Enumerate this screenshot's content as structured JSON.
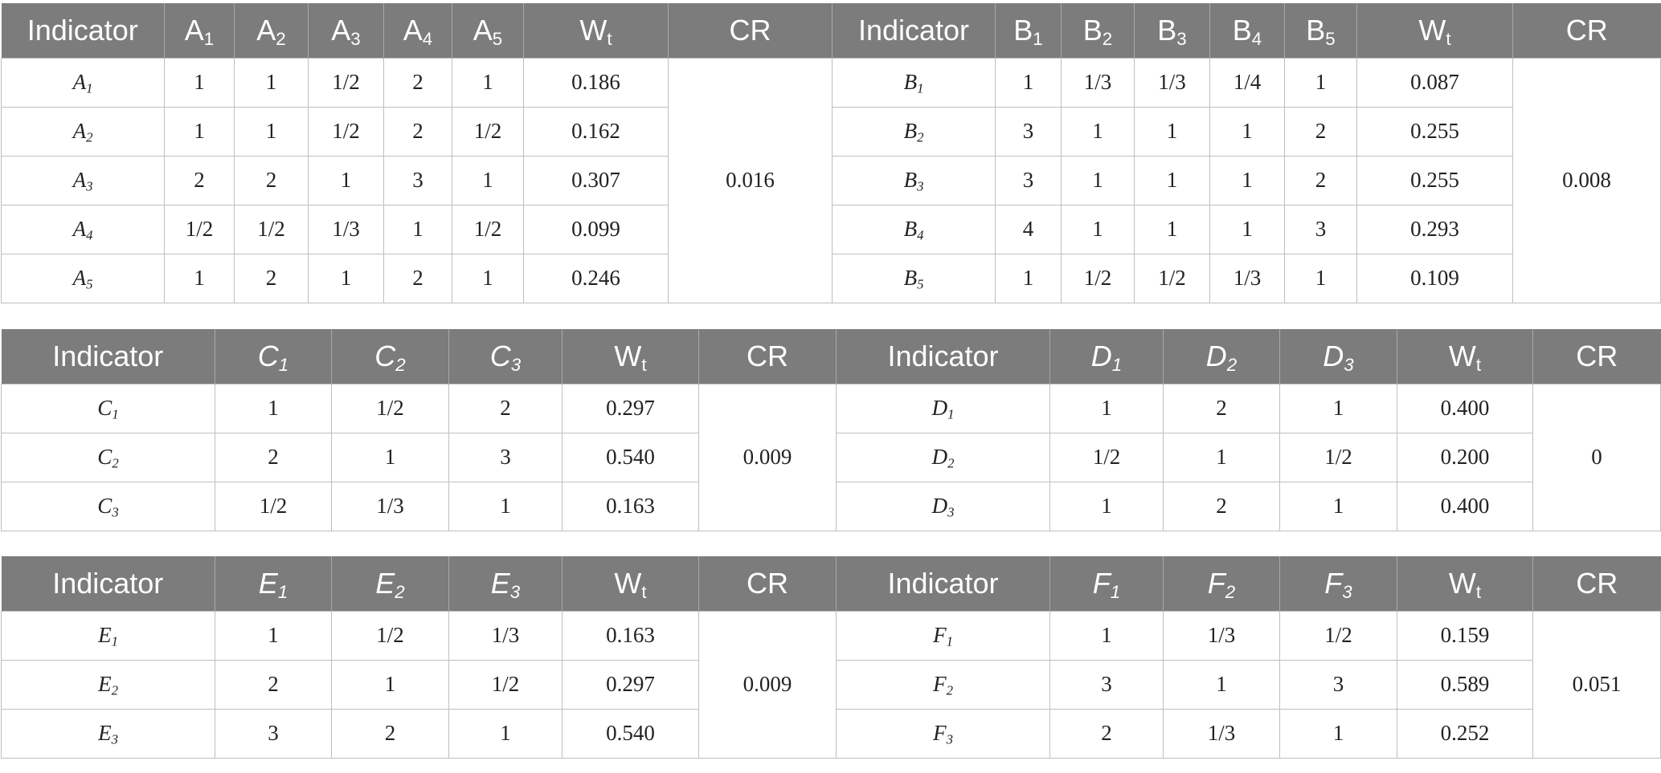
{
  "table1": {
    "left": {
      "header": {
        "indicator": "Indicator",
        "cols": [
          "A",
          "A",
          "A",
          "A",
          "A"
        ],
        "col_subs": [
          "1",
          "2",
          "3",
          "4",
          "5"
        ],
        "weight": "W",
        "weight_sub": "t",
        "cr": "CR"
      },
      "rows": [
        {
          "label": "A",
          "label_sub": "1",
          "cells": [
            "1",
            "1",
            "1/2",
            "2",
            "1"
          ],
          "weight": "0.186"
        },
        {
          "label": "A",
          "label_sub": "2",
          "cells": [
            "1",
            "1",
            "1/2",
            "2",
            "1/2"
          ],
          "weight": "0.162"
        },
        {
          "label": "A",
          "label_sub": "3",
          "cells": [
            "2",
            "2",
            "1",
            "3",
            "1"
          ],
          "weight": "0.307"
        },
        {
          "label": "A",
          "label_sub": "4",
          "cells": [
            "1/2",
            "1/2",
            "1/3",
            "1",
            "1/2"
          ],
          "weight": "0.099"
        },
        {
          "label": "A",
          "label_sub": "5",
          "cells": [
            "1",
            "2",
            "1",
            "2",
            "1"
          ],
          "weight": "0.246"
        }
      ],
      "cr_value": "0.016"
    },
    "right": {
      "header": {
        "indicator": "Indicator",
        "cols": [
          "B",
          "B",
          "B",
          "B",
          "B"
        ],
        "col_subs": [
          "1",
          "2",
          "3",
          "4",
          "5"
        ],
        "weight": "W",
        "weight_sub": "t",
        "cr": "CR"
      },
      "rows": [
        {
          "label": "B",
          "label_sub": "1",
          "cells": [
            "1",
            "1/3",
            "1/3",
            "1/4",
            "1"
          ],
          "weight": "0.087"
        },
        {
          "label": "B",
          "label_sub": "2",
          "cells": [
            "3",
            "1",
            "1",
            "1",
            "2"
          ],
          "weight": "0.255"
        },
        {
          "label": "B",
          "label_sub": "3",
          "cells": [
            "3",
            "1",
            "1",
            "1",
            "2"
          ],
          "weight": "0.255"
        },
        {
          "label": "B",
          "label_sub": "4",
          "cells": [
            "4",
            "1",
            "1",
            "1",
            "3"
          ],
          "weight": "0.293"
        },
        {
          "label": "B",
          "label_sub": "5",
          "cells": [
            "1",
            "1/2",
            "1/2",
            "1/3",
            "1"
          ],
          "weight": "0.109"
        }
      ],
      "cr_value": "0.008"
    }
  },
  "table2": {
    "left": {
      "header": {
        "indicator": "Indicator",
        "cols": [
          "C",
          "C",
          "C"
        ],
        "col_subs": [
          "1",
          "2",
          "3"
        ],
        "weight": "W",
        "weight_sub": "t",
        "cr": "CR"
      },
      "rows": [
        {
          "label": "C",
          "label_sub": "1",
          "cells": [
            "1",
            "1/2",
            "2"
          ],
          "weight": "0.297"
        },
        {
          "label": "C",
          "label_sub": "2",
          "cells": [
            "2",
            "1",
            "3"
          ],
          "weight": "0.540"
        },
        {
          "label": "C",
          "label_sub": "3",
          "cells": [
            "1/2",
            "1/3",
            "1"
          ],
          "weight": "0.163"
        }
      ],
      "cr_value": "0.009"
    },
    "right": {
      "header": {
        "indicator": "Indicator",
        "cols": [
          "D",
          "D",
          "D"
        ],
        "col_subs": [
          "1",
          "2",
          "3"
        ],
        "weight": "W",
        "weight_sub": "t",
        "cr": "CR"
      },
      "rows": [
        {
          "label": "D",
          "label_sub": "1",
          "cells": [
            "1",
            "2",
            "1"
          ],
          "weight": "0.400"
        },
        {
          "label": "D",
          "label_sub": "2",
          "cells": [
            "1/2",
            "1",
            "1/2"
          ],
          "weight": "0.200"
        },
        {
          "label": "D",
          "label_sub": "3",
          "cells": [
            "1",
            "2",
            "1"
          ],
          "weight": "0.400"
        }
      ],
      "cr_value": "0"
    }
  },
  "table3": {
    "left": {
      "header": {
        "indicator": "Indicator",
        "cols": [
          "E",
          "E",
          "E"
        ],
        "col_subs": [
          "1",
          "2",
          "3"
        ],
        "weight": "W",
        "weight_sub": "t",
        "cr": "CR"
      },
      "rows": [
        {
          "label": "E",
          "label_sub": "1",
          "cells": [
            "1",
            "1/2",
            "1/3"
          ],
          "weight": "0.163"
        },
        {
          "label": "E",
          "label_sub": "2",
          "cells": [
            "2",
            "1",
            "1/2"
          ],
          "weight": "0.297"
        },
        {
          "label": "E",
          "label_sub": "3",
          "cells": [
            "3",
            "2",
            "1"
          ],
          "weight": "0.540"
        }
      ],
      "cr_value": "0.009"
    },
    "right": {
      "header": {
        "indicator": "Indicator",
        "cols": [
          "F",
          "F",
          "F"
        ],
        "col_subs": [
          "1",
          "2",
          "3"
        ],
        "weight": "W",
        "weight_sub": "t",
        "cr": "CR"
      },
      "rows": [
        {
          "label": "F",
          "label_sub": "1",
          "cells": [
            "1",
            "1/3",
            "1/2"
          ],
          "weight": "0.159"
        },
        {
          "label": "F",
          "label_sub": "2",
          "cells": [
            "3",
            "1",
            "3"
          ],
          "weight": "0.589"
        },
        {
          "label": "F",
          "label_sub": "3",
          "cells": [
            "2",
            "1/3",
            "1"
          ],
          "weight": "0.252"
        }
      ],
      "cr_value": "0.051"
    }
  }
}
